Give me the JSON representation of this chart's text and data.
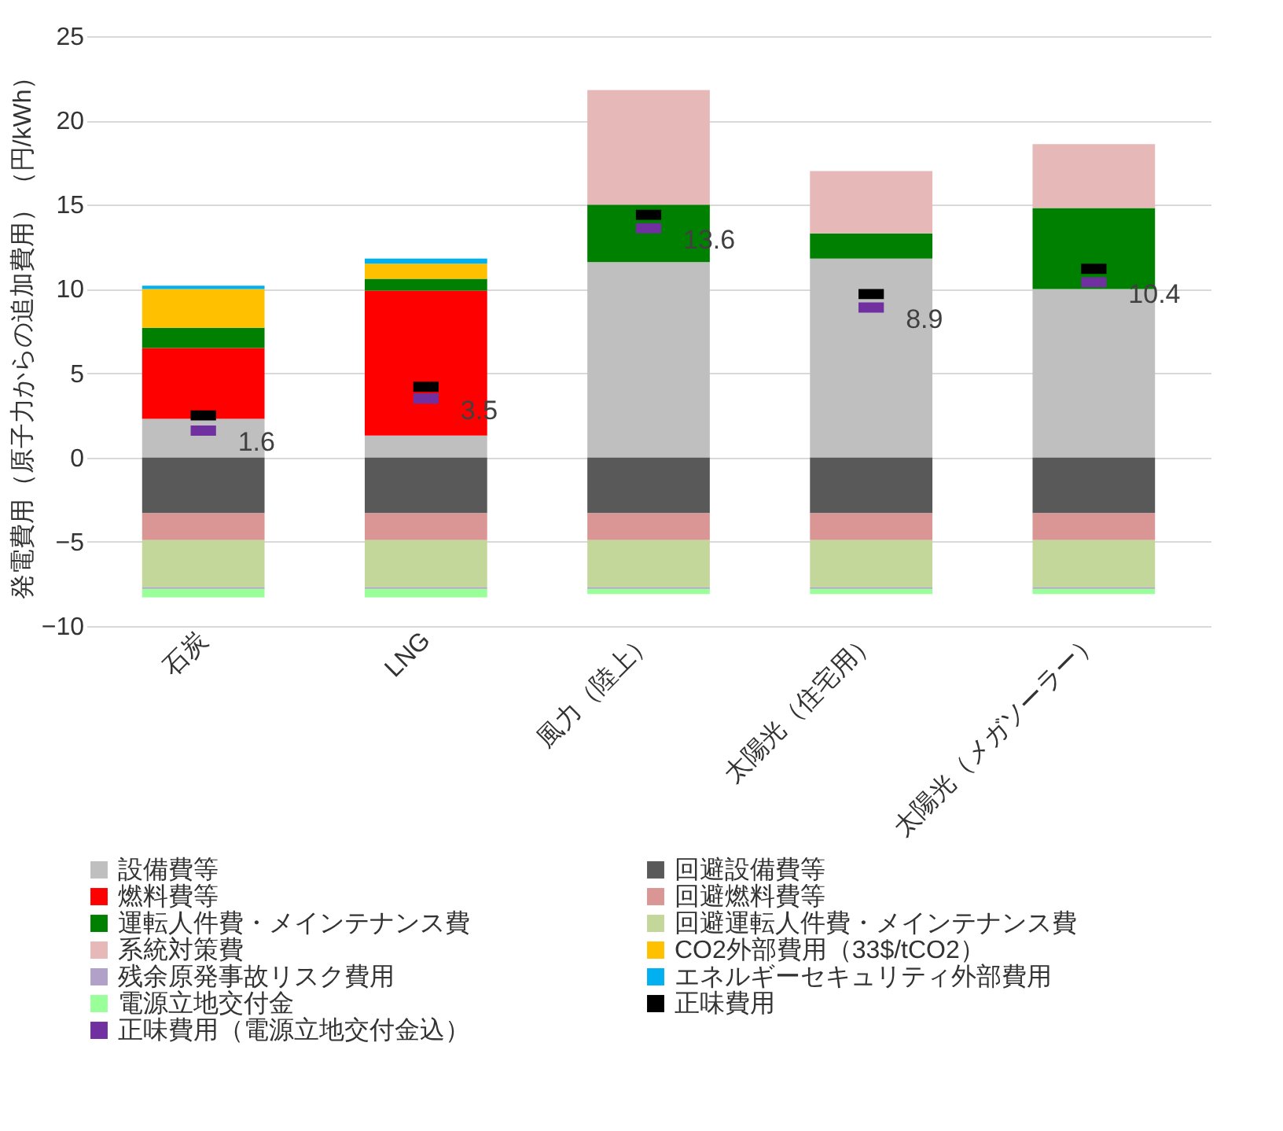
{
  "chart_data": {
    "type": "bar",
    "stacked": true,
    "ylabel": "発電費用（原子力からの追加費用）（円/kWh）",
    "categories": [
      "石炭",
      "LNG",
      "風力（陸上）",
      "太陽光（住宅用）",
      "太陽光（メガソーラー）"
    ],
    "ylim": [
      -10,
      25
    ],
    "yticks": [
      -10,
      -5,
      0,
      5,
      10,
      15,
      20,
      25
    ],
    "grid": "y",
    "legend": "bottom",
    "series": [
      {
        "name": "設備費等",
        "color": "#bfbfbf",
        "values": [
          2.3,
          1.3,
          11.6,
          11.8,
          10.0
        ]
      },
      {
        "name": "回避設備費等",
        "color": "#595959",
        "values": [
          -3.3,
          -3.3,
          -3.3,
          -3.3,
          -3.3
        ]
      },
      {
        "name": "燃料費等",
        "color": "#ff0000",
        "values": [
          4.2,
          8.6,
          null,
          null,
          null
        ]
      },
      {
        "name": "回避燃料費等",
        "color": "#da9694",
        "values": [
          -1.6,
          -1.6,
          -1.6,
          -1.6,
          -1.6
        ]
      },
      {
        "name": "運転人件費・メインテナンス費",
        "color": "#008000",
        "values": [
          1.2,
          0.7,
          3.4,
          1.5,
          4.8
        ]
      },
      {
        "name": "回避運転人件費・メインテナンス費",
        "color": "#c4d79b",
        "values": [
          -2.8,
          -2.8,
          -2.8,
          -2.8,
          -2.8
        ]
      },
      {
        "name": "系統対策費",
        "color": "#e6b8b7",
        "values": [
          null,
          null,
          6.8,
          3.7,
          3.8
        ]
      },
      {
        "name": "CO2外部費用（33$/tCO2）",
        "color": "#ffc000",
        "values": [
          2.3,
          0.9,
          null,
          null,
          null
        ]
      },
      {
        "name": "残余原発事故リスク費用",
        "color": "#b1a0c7",
        "values": [
          -0.1,
          -0.1,
          -0.1,
          -0.1,
          -0.1
        ]
      },
      {
        "name": "エネルギーセキュリティ外部費用",
        "color": "#00b0f0",
        "values": [
          0.2,
          0.3,
          null,
          null,
          null
        ]
      },
      {
        "name": "電源立地交付金",
        "color": "#99ff99",
        "values": [
          -0.5,
          -0.5,
          -0.3,
          -0.3,
          -0.3
        ]
      },
      {
        "name": "正味費用",
        "type": "scatter",
        "color": "#000000",
        "values": [
          2.5,
          4.2,
          14.4,
          9.7,
          11.2
        ]
      },
      {
        "name": "正味費用（電源立地交付金込）",
        "type": "scatter",
        "color": "#7030a0",
        "values": [
          1.6,
          3.5,
          13.6,
          8.9,
          10.4
        ],
        "value_labels": [
          "1.6",
          "3.5",
          "13.6",
          "8.9",
          "10.4"
        ]
      }
    ]
  }
}
